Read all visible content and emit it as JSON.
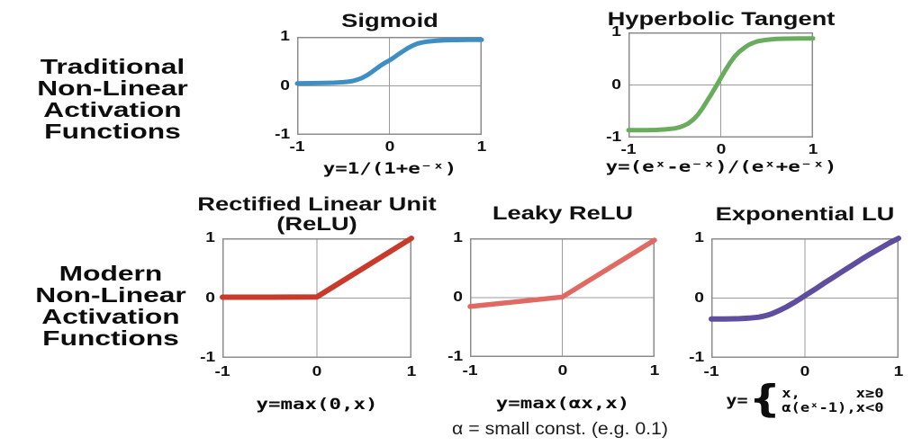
{
  "sections": [
    {
      "id": "traditional",
      "lines": [
        "Traditional",
        "Non-Linear",
        "Activation",
        "Functions"
      ]
    },
    {
      "id": "modern",
      "lines": [
        "Modern",
        "Non-Linear",
        "Activation",
        "Functions"
      ]
    }
  ],
  "axis_ticks": {
    "y": [
      "1",
      "0",
      "-1"
    ],
    "x": [
      "-1",
      "0",
      "1"
    ]
  },
  "caption": "α = small const. (e.g. 0.1)",
  "chart_data": [
    {
      "id": "sigmoid",
      "type": "line",
      "title": "Sigmoid",
      "formula": "y=1/(1+e⁻ˣ)",
      "color": "#3D8EC3",
      "xlim": [
        -1,
        1
      ],
      "ylim": [
        -1,
        1
      ],
      "xticks": [
        -1,
        0,
        1
      ],
      "yticks": [
        1,
        0,
        -1
      ],
      "grid": "zero-lines",
      "legend": "none",
      "points": [
        [
          -1,
          0.05
        ],
        [
          -0.85,
          0.055
        ],
        [
          -0.7,
          0.06
        ],
        [
          -0.6,
          0.065
        ],
        [
          -0.5,
          0.075
        ],
        [
          -0.45,
          0.085
        ],
        [
          -0.4,
          0.1
        ],
        [
          -0.35,
          0.125
        ],
        [
          -0.3,
          0.16
        ],
        [
          -0.25,
          0.21
        ],
        [
          -0.2,
          0.27
        ],
        [
          -0.15,
          0.34
        ],
        [
          -0.1,
          0.41
        ],
        [
          -0.05,
          0.47
        ],
        [
          0,
          0.52
        ],
        [
          0.05,
          0.58
        ],
        [
          0.1,
          0.65
        ],
        [
          0.15,
          0.71
        ],
        [
          0.2,
          0.77
        ],
        [
          0.25,
          0.82
        ],
        [
          0.3,
          0.86
        ],
        [
          0.35,
          0.885
        ],
        [
          0.4,
          0.9
        ],
        [
          0.5,
          0.92
        ],
        [
          0.6,
          0.93
        ],
        [
          0.7,
          0.935
        ],
        [
          0.85,
          0.94
        ],
        [
          1,
          0.94
        ]
      ]
    },
    {
      "id": "tanh",
      "type": "line",
      "title": "Hyperbolic Tangent",
      "formula": "y=(eˣ-e⁻ˣ)/(eˣ+e⁻ˣ)",
      "color": "#68AC5C",
      "xlim": [
        -1,
        1
      ],
      "ylim": [
        -1,
        1
      ],
      "xticks": [
        -1,
        0,
        1
      ],
      "yticks": [
        1,
        0,
        -1
      ],
      "grid": "zero-lines",
      "legend": "none",
      "points": [
        [
          -1,
          -0.86
        ],
        [
          -0.8,
          -0.86
        ],
        [
          -0.7,
          -0.855
        ],
        [
          -0.6,
          -0.845
        ],
        [
          -0.5,
          -0.825
        ],
        [
          -0.45,
          -0.805
        ],
        [
          -0.4,
          -0.775
        ],
        [
          -0.35,
          -0.73
        ],
        [
          -0.3,
          -0.66
        ],
        [
          -0.25,
          -0.57
        ],
        [
          -0.2,
          -0.45
        ],
        [
          -0.15,
          -0.31
        ],
        [
          -0.1,
          -0.17
        ],
        [
          -0.05,
          -0.02
        ],
        [
          0,
          0.13
        ],
        [
          0.05,
          0.28
        ],
        [
          0.1,
          0.42
        ],
        [
          0.15,
          0.54
        ],
        [
          0.2,
          0.63
        ],
        [
          0.25,
          0.7
        ],
        [
          0.3,
          0.76
        ],
        [
          0.35,
          0.8
        ],
        [
          0.4,
          0.83
        ],
        [
          0.5,
          0.86
        ],
        [
          0.6,
          0.875
        ],
        [
          0.7,
          0.88
        ],
        [
          0.85,
          0.885
        ],
        [
          1,
          0.885
        ]
      ]
    },
    {
      "id": "relu",
      "type": "line",
      "title_lines": [
        "Rectified Linear Unit",
        "(ReLU)"
      ],
      "formula": "y=max(0,x)",
      "color": "#C93A2B",
      "xlim": [
        -1,
        1
      ],
      "ylim": [
        -1,
        1
      ],
      "xticks": [
        -1,
        0,
        1
      ],
      "yticks": [
        1,
        0,
        -1
      ],
      "grid": "zero-lines",
      "legend": "none",
      "points": [
        [
          -1,
          0.015
        ],
        [
          -0.5,
          0.015
        ],
        [
          0,
          0.02
        ],
        [
          1,
          1
        ]
      ]
    },
    {
      "id": "leaky",
      "type": "line",
      "title": "Leaky ReLU",
      "formula": "y=max(αx,x)",
      "color": "#E06A63",
      "xlim": [
        -1,
        1
      ],
      "ylim": [
        -1,
        1
      ],
      "xticks": [
        -1,
        0,
        1
      ],
      "yticks": [
        1,
        0,
        -1
      ],
      "grid": "zero-lines",
      "legend": "none",
      "points": [
        [
          -1,
          -0.15
        ],
        [
          0,
          0.01
        ],
        [
          1,
          0.97
        ]
      ]
    },
    {
      "id": "elu",
      "type": "line",
      "title": "Exponential LU",
      "formula_prefix": "y=",
      "formula_brace": "{",
      "formula_cases": [
        [
          "x,",
          "x≥0"
        ],
        [
          "α(eˣ-1),",
          "x<0"
        ]
      ],
      "color": "#5F4DA0",
      "xlim": [
        -1,
        1
      ],
      "ylim": [
        -1,
        1
      ],
      "xticks": [
        -1,
        0,
        1
      ],
      "yticks": [
        1,
        0,
        -1
      ],
      "grid": "zero-lines",
      "legend": "none",
      "points": [
        [
          -1,
          -0.35
        ],
        [
          -0.85,
          -0.35
        ],
        [
          -0.7,
          -0.345
        ],
        [
          -0.6,
          -0.335
        ],
        [
          -0.5,
          -0.32
        ],
        [
          -0.45,
          -0.305
        ],
        [
          -0.4,
          -0.285
        ],
        [
          -0.35,
          -0.26
        ],
        [
          -0.3,
          -0.225
        ],
        [
          -0.25,
          -0.19
        ],
        [
          -0.2,
          -0.15
        ],
        [
          -0.15,
          -0.105
        ],
        [
          -0.1,
          -0.06
        ],
        [
          -0.05,
          -0.01
        ],
        [
          0,
          0.04
        ],
        [
          0.1,
          0.14
        ],
        [
          0.2,
          0.245
        ],
        [
          0.3,
          0.345
        ],
        [
          0.4,
          0.445
        ],
        [
          0.5,
          0.545
        ],
        [
          0.6,
          0.645
        ],
        [
          0.7,
          0.74
        ],
        [
          0.8,
          0.83
        ],
        [
          0.9,
          0.92
        ],
        [
          1,
          1.0
        ]
      ]
    }
  ]
}
